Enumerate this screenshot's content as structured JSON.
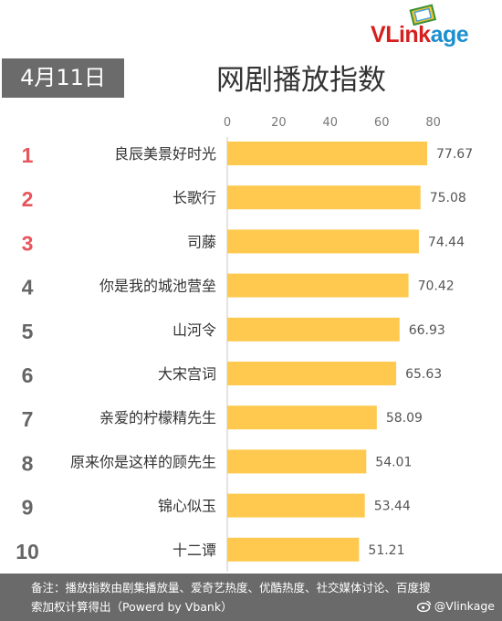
{
  "brand": {
    "logo_v": "V",
    "logo_link": "Link",
    "logo_age": "age"
  },
  "date_label": "4月11日",
  "colors": {
    "bar": "#fec94e",
    "rank_top": "#e8555b",
    "rank_other": "#666666",
    "footer_bg": "#6a6a6a",
    "date_bg": "#6b6b6b"
  },
  "chart_data": {
    "type": "bar",
    "orientation": "horizontal",
    "title": "网剧播放指数",
    "xlim": [
      0,
      80
    ],
    "x_ticks": [
      0,
      20,
      40,
      60,
      80
    ],
    "grid": false,
    "ranks": [
      "1",
      "2",
      "3",
      "4",
      "5",
      "6",
      "7",
      "8",
      "9",
      "10"
    ],
    "categories": [
      "良辰美景好时光",
      "长歌行",
      "司藤",
      "你是我的城池营垒",
      "山河令",
      "大宋宫词",
      "亲爱的柠檬精先生",
      "原来你是这样的顾先生",
      "锦心似玉",
      "十二谭"
    ],
    "values": [
      77.67,
      75.08,
      74.44,
      70.42,
      66.93,
      65.63,
      58.09,
      54.01,
      53.44,
      51.21
    ],
    "value_labels": [
      "77.67",
      "75.08",
      "74.44",
      "70.42",
      "66.93",
      "65.63",
      "58.09",
      "54.01",
      "53.44",
      "51.21"
    ]
  },
  "footer": {
    "note": "备注：播放指数由剧集播放量、爱奇艺热度、优酷热度、社交媒体讨论、百度搜索加权计算得出（Powerd by Vbank）",
    "weibo_handle": "@Vlinkage"
  }
}
